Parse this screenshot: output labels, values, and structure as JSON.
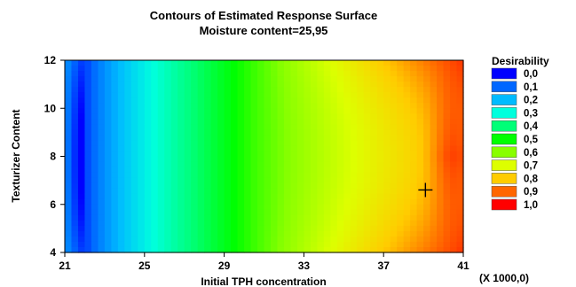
{
  "chart_data": {
    "type": "heatmap",
    "title": "Contours of Estimated Response Surface",
    "subtitle": "Moisture content=25,95",
    "xlabel": "Initial TPH concentration",
    "ylabel": "Texturizer Content",
    "x_multiplier_label": "(X 1000,0)",
    "xlim": [
      21,
      41
    ],
    "ylim": [
      4,
      12
    ],
    "x_ticks": [
      "21",
      "25",
      "29",
      "33",
      "37",
      "41"
    ],
    "y_ticks": [
      "4",
      "6",
      "8",
      "10",
      "12"
    ],
    "legend": {
      "title": "Desirability",
      "placement": "right",
      "entries": [
        {
          "label": "0,0",
          "color": "#0000ff"
        },
        {
          "label": "0,1",
          "color": "#0066ff"
        },
        {
          "label": "0,2",
          "color": "#00bbff"
        },
        {
          "label": "0,3",
          "color": "#00ffdd"
        },
        {
          "label": "0,4",
          "color": "#00ff77"
        },
        {
          "label": "0,5",
          "color": "#00ff00"
        },
        {
          "label": "0,6",
          "color": "#88ff00"
        },
        {
          "label": "0,7",
          "color": "#ddff00"
        },
        {
          "label": "0,8",
          "color": "#ffcc00"
        },
        {
          "label": "0,9",
          "color": "#ff6600"
        },
        {
          "label": "1,0",
          "color": "#ff0000"
        }
      ]
    },
    "optimum_marker": {
      "x": 39.1,
      "y": 6.6
    },
    "grid": false
  }
}
